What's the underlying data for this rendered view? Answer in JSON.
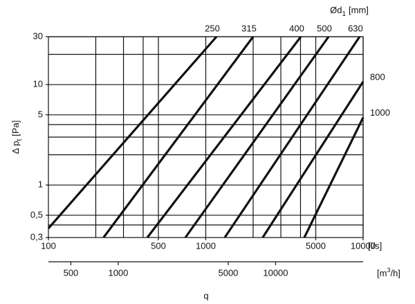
{
  "chart_data": {
    "type": "line",
    "title": {
      "symbol": "Ød",
      "sub": "1",
      "unit": "[mm]"
    },
    "y_label": {
      "symbol": "Δ p",
      "sub": "t",
      "unit": "[Pa]"
    },
    "x_label": "q",
    "x_unit": "[l/s]",
    "x2_unit": {
      "pre": "[m",
      "sup": "3",
      "post": "/h]"
    },
    "log_x": true,
    "log_y": true,
    "grid": true,
    "color": "#111111",
    "xlim": [
      100,
      10000
    ],
    "xticks": [
      100,
      500,
      1000,
      5000,
      10000
    ],
    "xgrid": [
      200,
      300,
      400,
      500,
      1000,
      2000,
      3000,
      4000,
      5000,
      10000
    ],
    "ylim": [
      0.3,
      30
    ],
    "yticks": [
      {
        "value": 0.3,
        "label": "0,3"
      },
      {
        "value": 0.5,
        "label": "0,5"
      },
      1,
      5,
      10,
      30
    ],
    "ygrid": [
      0.4,
      0.5,
      1,
      2,
      3,
      4,
      5,
      10,
      20,
      30
    ],
    "x2lim": [
      360,
      36000
    ],
    "x2ticks": [
      500,
      1000,
      5000,
      10000
    ],
    "series": [
      {
        "name": "250",
        "x": [
          100,
          1170
        ],
        "values": [
          0.37,
          30
        ]
      },
      {
        "name": "315",
        "x": [
          224,
          2000
        ],
        "values": [
          0.3,
          30
        ]
      },
      {
        "name": "400",
        "x": [
          425,
          4020
        ],
        "values": [
          0.3,
          30
        ]
      },
      {
        "name": "500",
        "x": [
          742,
          6030
        ],
        "values": [
          0.3,
          30
        ]
      },
      {
        "name": "630",
        "x": [
          1320,
          9500
        ],
        "values": [
          0.3,
          30
        ]
      },
      {
        "name": "800",
        "x": [
          2300,
          10000
        ],
        "values": [
          0.3,
          10.7
        ]
      },
      {
        "name": "1000",
        "x": [
          4230,
          10000
        ],
        "values": [
          0.3,
          4.7
        ]
      }
    ]
  }
}
